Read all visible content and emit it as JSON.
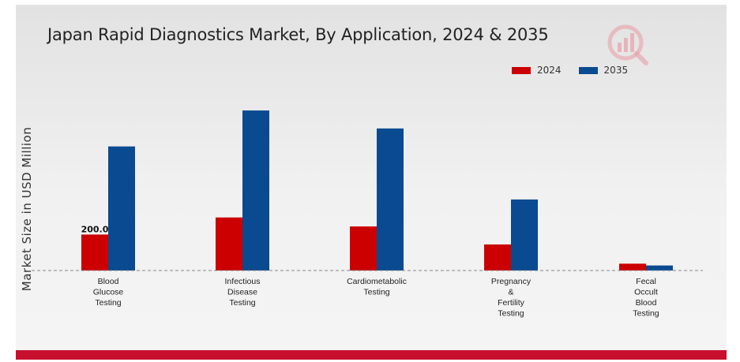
{
  "chart_data": {
    "type": "bar",
    "title": "Japan Rapid Diagnostics Market, By Application, 2024 & 2035",
    "ylabel": "Market Size in USD Million",
    "xlabel": "",
    "categories": [
      [
        "Blood",
        "Glucose",
        "Testing"
      ],
      [
        "Infectious",
        "Disease",
        "Testing"
      ],
      [
        "Cardiometabolic",
        "Testing"
      ],
      [
        "Pregnancy",
        "&",
        "Fertility",
        "Testing"
      ],
      [
        "Fecal",
        "Occult",
        "Blood",
        "Testing"
      ]
    ],
    "series": [
      {
        "name": "2024",
        "color": "#cc0000",
        "values": [
          200.0,
          295.0,
          245.0,
          145.0,
          38.0
        ]
      },
      {
        "name": "2035",
        "color": "#0a4a90",
        "values": [
          690.0,
          890.0,
          790.0,
          395.0,
          28.0
        ]
      }
    ],
    "data_labels": [
      {
        "series": 0,
        "index": 0,
        "text": "200.0"
      }
    ],
    "ylim": [
      0,
      1000
    ],
    "grid": false,
    "legend_position": "top-right"
  }
}
